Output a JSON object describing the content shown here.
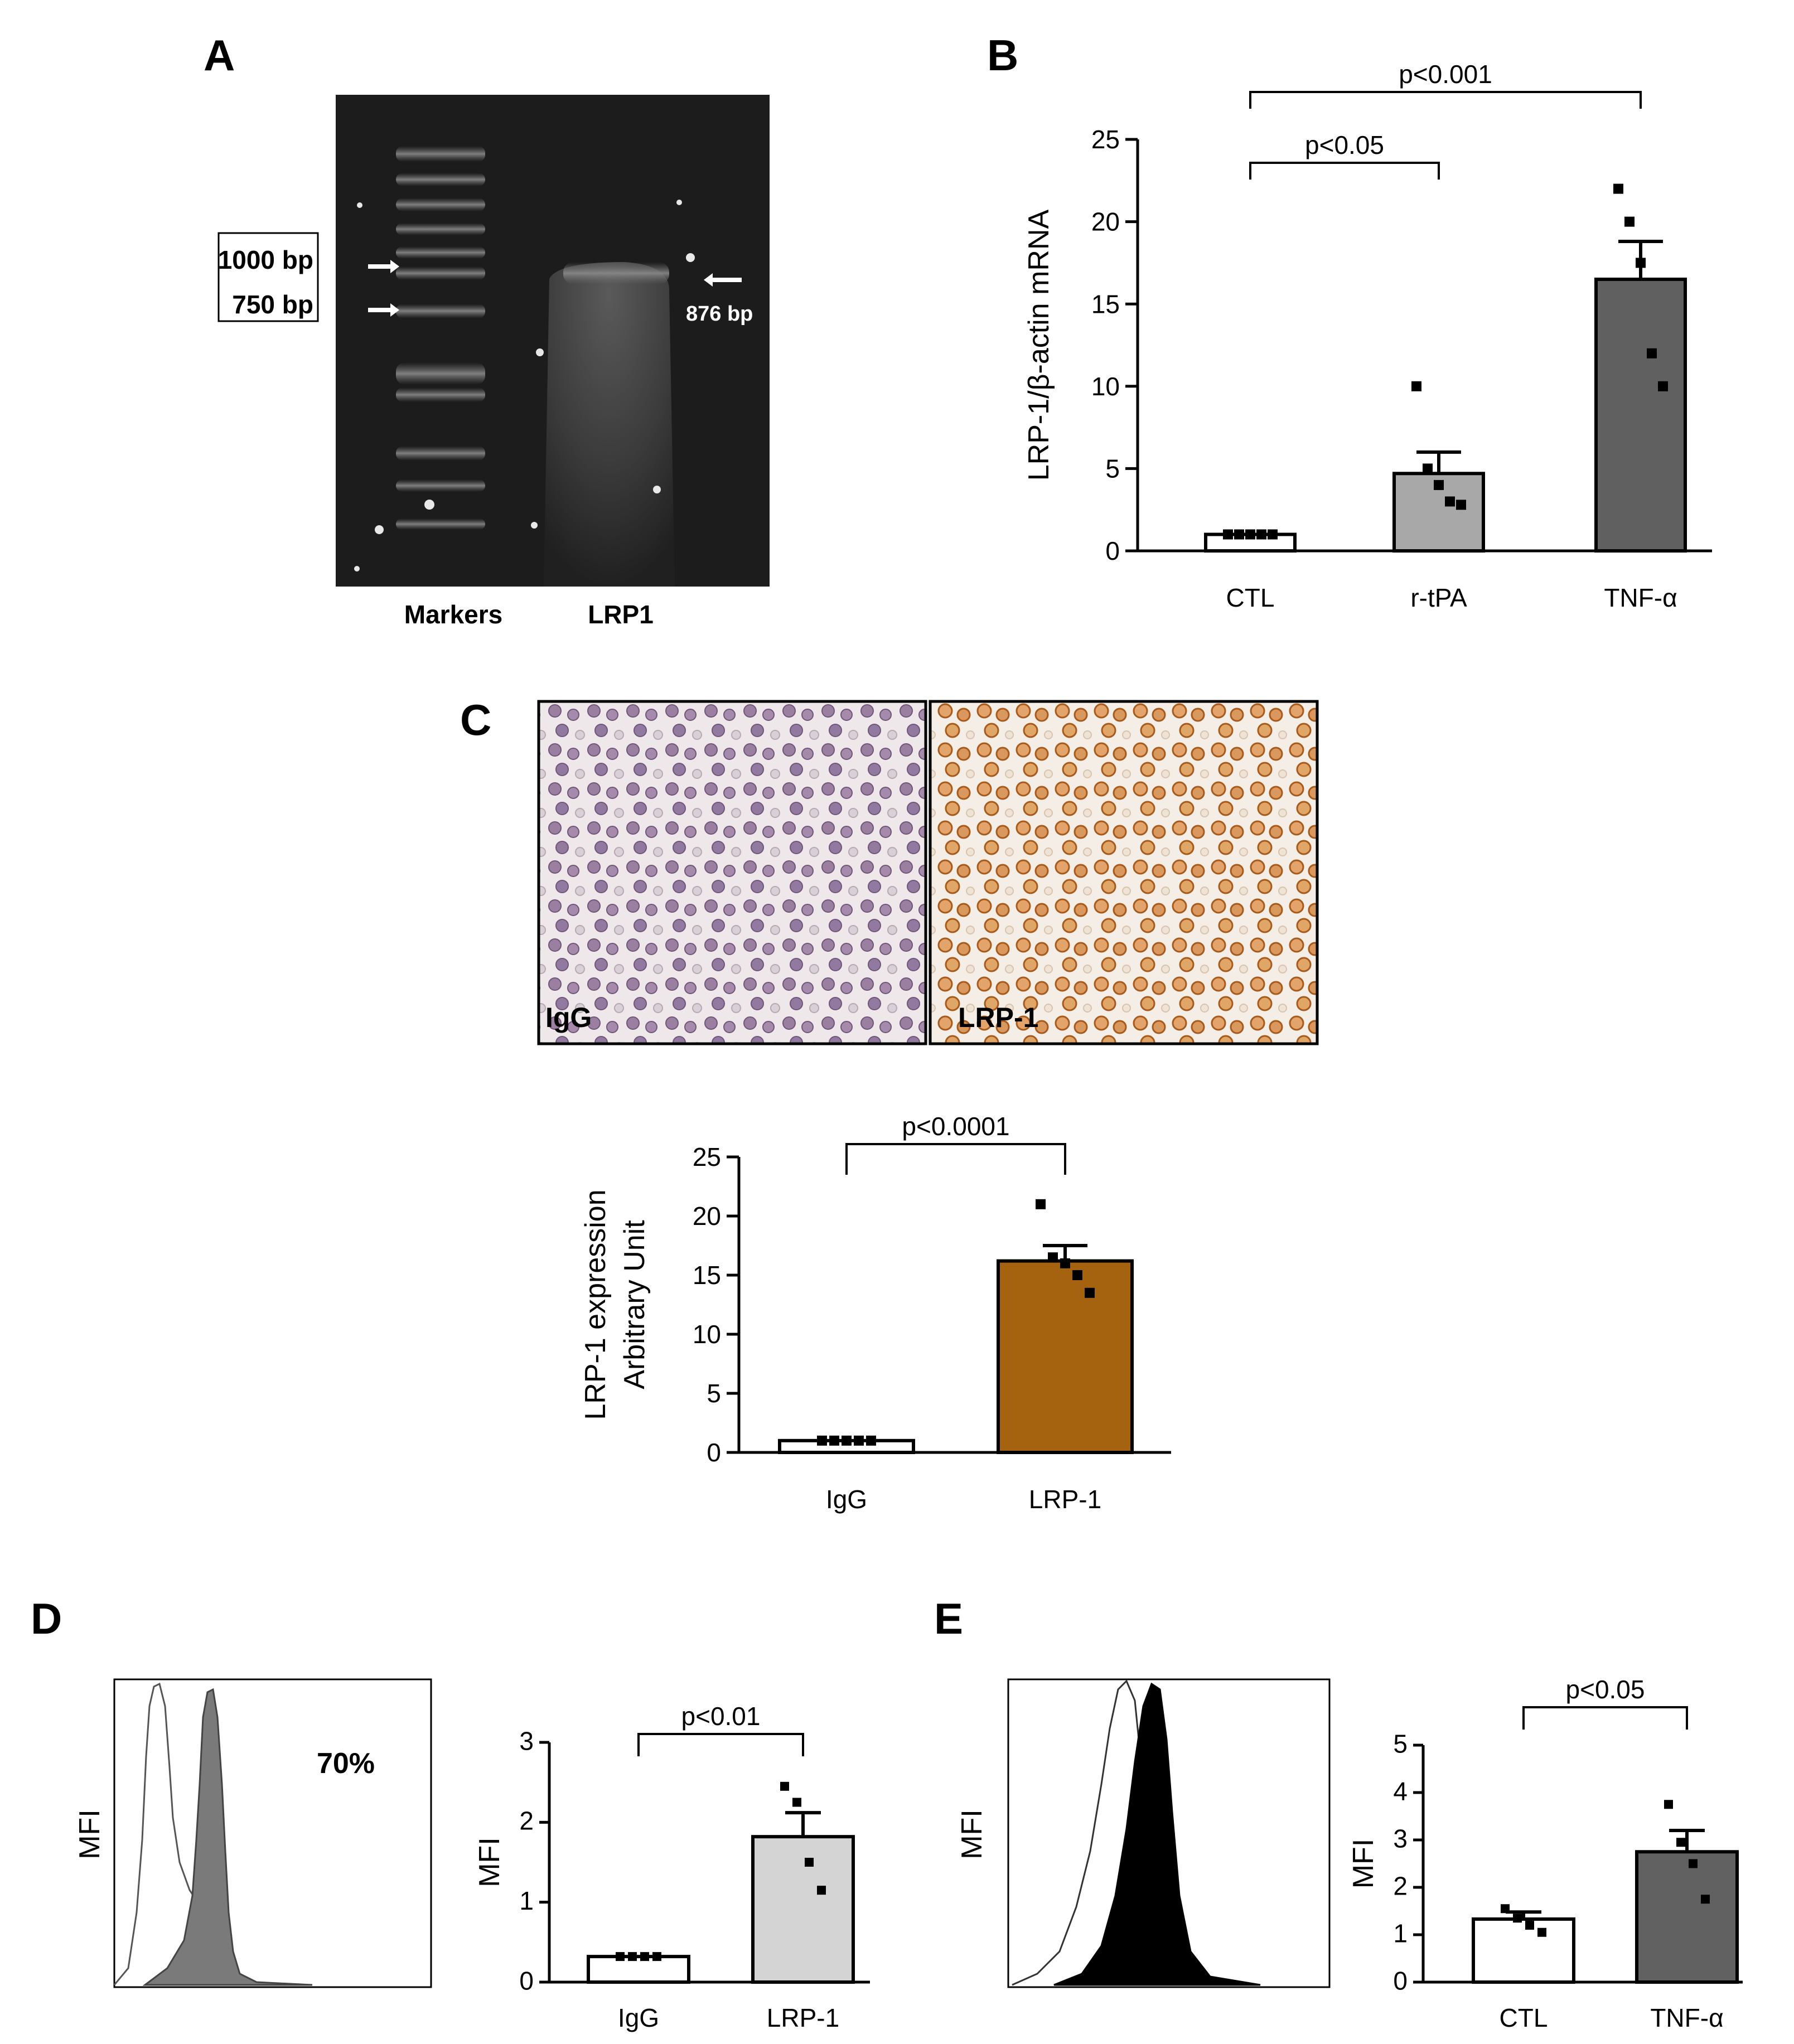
{
  "panels": {
    "A": {
      "letter": "A",
      "marker_boxes": [
        "1000 bp",
        "750 bp"
      ],
      "band_label": "876 bp",
      "lanes": [
        "Markers",
        "LRP1"
      ]
    },
    "B": {
      "letter": "B"
    },
    "C": {
      "letter": "C",
      "micrographs": [
        "IgG",
        "LRP-1"
      ]
    },
    "D": {
      "letter": "D",
      "histogram_ylabel": "MFI",
      "percentage": "70%"
    },
    "E": {
      "letter": "E",
      "histogram_ylabel": "MFI"
    }
  },
  "chart_data": [
    {
      "id": "B",
      "type": "bar",
      "categories": [
        "CTL",
        "r-tPA",
        "TNF-α"
      ],
      "values": [
        1.0,
        4.7,
        16.5
      ],
      "errors": [
        0.05,
        1.3,
        2.3
      ],
      "points": [
        [
          1.0,
          1.0,
          1.0,
          1.0,
          1.0
        ],
        [
          10.0,
          5.0,
          4.0,
          3.0,
          2.8
        ],
        [
          22.0,
          20.0,
          17.5,
          12.0,
          10.0
        ]
      ],
      "colors": [
        "#ffffff",
        "#a8a8a8",
        "#606060"
      ],
      "ylabel": "LRP-1/β-actin mRNA",
      "ylim": [
        0,
        25
      ],
      "yticks": [
        0,
        5,
        10,
        15,
        20,
        25
      ],
      "comparisons": [
        {
          "from": 0,
          "to": 1,
          "label": "p<0.05"
        },
        {
          "from": 0,
          "to": 2,
          "label": "p<0.001"
        }
      ]
    },
    {
      "id": "C",
      "type": "bar",
      "categories": [
        "IgG",
        "LRP-1"
      ],
      "values": [
        1.0,
        16.2
      ],
      "errors": [
        0.05,
        1.3
      ],
      "points": [
        [
          1.0,
          1.0,
          1.0,
          1.0,
          1.0
        ],
        [
          21.0,
          16.5,
          16.0,
          15.0,
          13.5
        ]
      ],
      "colors": [
        "#ffffff",
        "#a5620f"
      ],
      "ylabel_lines": [
        "LRP-1 expression",
        "Arbitrary Unit"
      ],
      "ylim": [
        0,
        25
      ],
      "yticks": [
        0,
        5,
        10,
        15,
        20,
        25
      ],
      "comparisons": [
        {
          "from": 0,
          "to": 1,
          "label": "p<0.0001"
        }
      ]
    },
    {
      "id": "D",
      "type": "bar",
      "categories": [
        "IgG",
        "LRP-1"
      ],
      "values": [
        0.32,
        1.82
      ],
      "errors": [
        0.02,
        0.3
      ],
      "points": [
        [
          0.32,
          0.32,
          0.32,
          0.32
        ],
        [
          2.45,
          2.25,
          1.5,
          1.15
        ]
      ],
      "colors": [
        "#ffffff",
        "#d4d4d4"
      ],
      "ylabel": "MFI",
      "ylim": [
        0,
        3
      ],
      "yticks": [
        0,
        1,
        2,
        3
      ],
      "comparisons": [
        {
          "from": 0,
          "to": 1,
          "label": "p<0.01"
        }
      ]
    },
    {
      "id": "E",
      "type": "bar",
      "categories": [
        "CTL",
        "TNF-α"
      ],
      "values": [
        1.33,
        2.75
      ],
      "errors": [
        0.15,
        0.45
      ],
      "points": [
        [
          1.55,
          1.35,
          1.2,
          1.05
        ],
        [
          3.75,
          2.95,
          2.5,
          1.75
        ]
      ],
      "colors": [
        "#ffffff",
        "#616161"
      ],
      "ylabel": "MFI",
      "ylim": [
        0,
        5
      ],
      "yticks": [
        0,
        1,
        2,
        3,
        4,
        5
      ],
      "comparisons": [
        {
          "from": 0,
          "to": 1,
          "label": "p<0.05"
        }
      ]
    }
  ]
}
